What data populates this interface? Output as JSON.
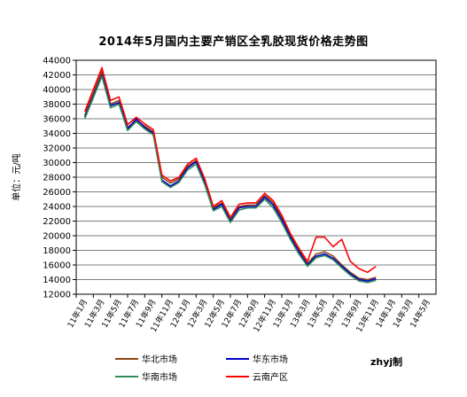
{
  "chart_data": {
    "type": "line",
    "title": "2014年5月国内主要产销区全乳胶现货价格走势图",
    "ylabel": "单位：元/吨",
    "xlabel": "",
    "ylim": [
      12000,
      44000
    ],
    "yticks": [
      12000,
      14000,
      16000,
      18000,
      20000,
      22000,
      24000,
      26000,
      28000,
      30000,
      32000,
      34000,
      36000,
      38000,
      40000,
      42000,
      44000
    ],
    "x_tick_labels": [
      "11年1月",
      "11年3月",
      "11年5月",
      "11年7月",
      "11年9月",
      "11年11月",
      "12年1月",
      "12年3月",
      "12年5月",
      "12年7月",
      "12年9月",
      "12年11月",
      "13年1月",
      "13年3月",
      "13年5月",
      "13年7月",
      "13年9月",
      "13年11月",
      "14年1月",
      "14年3月",
      "14年5月"
    ],
    "grid": true,
    "legend_position": "bottom",
    "note": "zhyj制",
    "series": [
      {
        "name": "华北市场",
        "color": "#8B4513",
        "x": [
          0,
          1,
          1.5,
          2,
          2.5,
          3,
          3.5,
          4,
          4.5,
          5,
          5.5,
          6,
          6.5,
          7,
          7.5,
          8,
          8.5,
          9,
          9.5,
          10,
          10.5,
          11,
          11.5,
          12,
          12.5,
          13,
          13.5,
          14,
          14.5,
          15,
          15.5,
          16,
          16.5,
          17
        ],
        "values": [
          36500,
          42500,
          38000,
          38500,
          34800,
          35800,
          35000,
          34200,
          28000,
          27200,
          27800,
          29500,
          30300,
          27500,
          23800,
          24500,
          22200,
          24000,
          24200,
          24200,
          25500,
          24500,
          22500,
          20000,
          18000,
          16200,
          17500,
          17800,
          17200,
          16000,
          15000,
          14200,
          14000,
          14300
        ]
      },
      {
        "name": "华东市场",
        "color": "#0000CC",
        "x": [
          0,
          1,
          1.5,
          2,
          2.5,
          3,
          3.5,
          4,
          4.5,
          5,
          5.5,
          6,
          6.5,
          7,
          7.5,
          8,
          8.5,
          9,
          9.5,
          10,
          10.5,
          11,
          11.5,
          12,
          12.5,
          13,
          13.5,
          14,
          14.5,
          15,
          15.5,
          16,
          16.5,
          17
        ],
        "values": [
          36200,
          42000,
          37800,
          38200,
          34600,
          36000,
          34800,
          34000,
          27600,
          26800,
          27500,
          29300,
          30100,
          27300,
          23600,
          24300,
          22000,
          23800,
          24000,
          24000,
          25300,
          24200,
          22200,
          19800,
          17800,
          16000,
          17200,
          17500,
          16900,
          15800,
          14800,
          14000,
          13800,
          14100
        ]
      },
      {
        "name": "华南市场",
        "color": "#2E8B57",
        "x": [
          0,
          1,
          1.5,
          2,
          2.5,
          3,
          3.5,
          4,
          4.5,
          5,
          5.5,
          6,
          6.5,
          7,
          7.5,
          8,
          8.5,
          9,
          9.5,
          10,
          10.5,
          11,
          11.5,
          12,
          12.5,
          13,
          13.5,
          14,
          14.5,
          15,
          15.5,
          16,
          16.5,
          17
        ],
        "values": [
          36000,
          41800,
          37500,
          38000,
          34400,
          35600,
          34600,
          33800,
          27400,
          26600,
          27300,
          29000,
          29800,
          27000,
          23400,
          24000,
          21800,
          23500,
          23800,
          23800,
          25000,
          23800,
          21800,
          19500,
          17500,
          15800,
          17000,
          17300,
          16700,
          15600,
          14600,
          13800,
          13600,
          13900
        ]
      },
      {
        "name": "云南产区",
        "color": "#FF0000",
        "x": [
          0,
          1,
          1.5,
          2,
          2.5,
          3,
          3.5,
          4,
          4.5,
          5,
          5.5,
          6,
          6.5,
          7,
          7.5,
          8,
          8.5,
          9,
          9.5,
          10,
          10.5,
          11,
          11.5,
          12,
          12.5,
          13,
          13.5,
          14,
          14.5,
          15,
          15.5,
          16,
          16.5,
          17
        ],
        "values": [
          37000,
          43000,
          38500,
          39000,
          35200,
          36200,
          35300,
          34500,
          28300,
          27500,
          28000,
          29800,
          30600,
          27800,
          24000,
          24800,
          22500,
          24300,
          24500,
          24500,
          25800,
          24800,
          22800,
          20300,
          18300,
          16500,
          19800,
          19800,
          18500,
          19500,
          16500,
          15500,
          15000,
          15800
        ]
      }
    ]
  }
}
